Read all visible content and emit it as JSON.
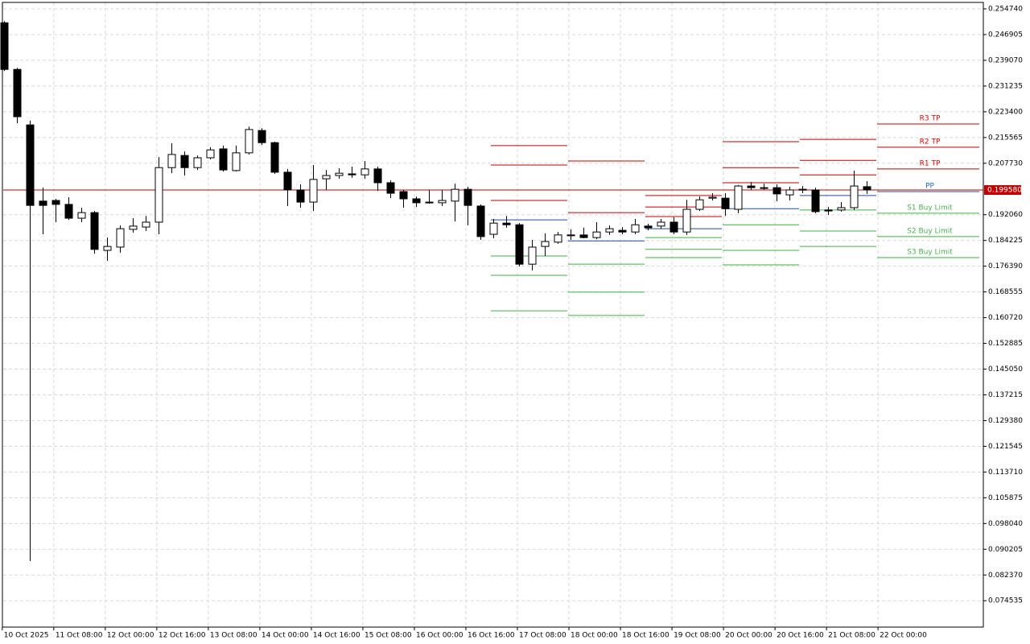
{
  "chart_data": {
    "type": "candlestick",
    "ylim": [
      0.0665,
      0.2567
    ],
    "yticks": [
      {
        "value": 0.25474,
        "label": "0.254740"
      },
      0.246905,
      {
        "value": 0.23907,
        "label": "0.239070"
      },
      0.231235,
      {
        "value": 0.2234,
        "label": "0.223400"
      },
      0.215565,
      {
        "value": 0.20773,
        "label": "0.207730"
      },
      {
        "value": 0.19206,
        "label": "0.192060"
      },
      0.184225,
      {
        "value": 0.17639,
        "label": "0.176390"
      },
      0.168555,
      {
        "value": 0.16072,
        "label": "0.160720"
      },
      0.152885,
      {
        "value": 0.14505,
        "label": "0.145050"
      },
      0.137215,
      {
        "value": 0.12938,
        "label": "0.129380"
      },
      0.121545,
      {
        "value": 0.11371,
        "label": "0.113710"
      },
      0.105875,
      {
        "value": 0.09804,
        "label": "0.098040"
      },
      0.090205,
      {
        "value": 0.08237,
        "label": "0.082370"
      },
      0.074535
    ],
    "xlim": [
      -0.3,
      76.05
    ],
    "xticks": [
      {
        "value": 0,
        "label": "10 Oct 2025"
      },
      {
        "value": 4,
        "label": "11 Oct 08:00"
      },
      {
        "value": 8,
        "label": "12 Oct 00:00"
      },
      {
        "value": 12,
        "label": "12 Oct 16:00"
      },
      {
        "value": 16,
        "label": "13 Oct 08:00"
      },
      {
        "value": 20,
        "label": "14 Oct 00:00"
      },
      {
        "value": 24,
        "label": "14 Oct 16:00"
      },
      {
        "value": 28,
        "label": "15 Oct 08:00"
      },
      {
        "value": 32,
        "label": "16 Oct 00:00"
      },
      {
        "value": 36,
        "label": "16 Oct 16:00"
      },
      {
        "value": 40,
        "label": "17 Oct 08:00"
      },
      {
        "value": 44,
        "label": "18 Oct 00:00"
      },
      {
        "value": 48,
        "label": "18 Oct 16:00"
      },
      {
        "value": 52,
        "label": "19 Oct 08:00"
      },
      {
        "value": 56,
        "label": "20 Oct 00:00"
      },
      {
        "value": 60,
        "label": "20 Oct 16:00"
      },
      {
        "value": 64,
        "label": "21 Oct 08:00"
      },
      {
        "value": 68,
        "label": "22 Oct 00:00"
      }
    ],
    "grid": true,
    "up_color": "#ffffff",
    "down_color": "#000000",
    "candles": [
      [
        0.2505,
        0.251,
        0.2358,
        0.2363
      ],
      [
        0.2363,
        0.2368,
        0.2199,
        0.2219
      ],
      [
        0.2194,
        0.2207,
        0.0866,
        0.1949
      ],
      [
        0.1962,
        0.2003,
        0.1861,
        0.1949
      ],
      [
        0.1964,
        0.1969,
        0.1898,
        0.1952
      ],
      [
        0.1952,
        0.1974,
        0.1905,
        0.191
      ],
      [
        0.191,
        0.1942,
        0.1898,
        0.1927
      ],
      [
        0.1927,
        0.1932,
        0.1802,
        0.1815
      ],
      [
        0.1812,
        0.1851,
        0.178,
        0.1824
      ],
      [
        0.1822,
        0.1888,
        0.1805,
        0.1878
      ],
      [
        0.1876,
        0.191,
        0.1866,
        0.1886
      ],
      [
        0.1883,
        0.1917,
        0.1871,
        0.1898
      ],
      [
        0.1898,
        0.2096,
        0.1861,
        0.2064
      ],
      [
        0.2064,
        0.2138,
        0.2047,
        0.2104
      ],
      [
        0.2101,
        0.2113,
        0.204,
        0.2064
      ],
      [
        0.2064,
        0.2101,
        0.2057,
        0.2094
      ],
      [
        0.2094,
        0.2126,
        0.2089,
        0.2118
      ],
      [
        0.2121,
        0.2131,
        0.2052,
        0.2057
      ],
      [
        0.2055,
        0.2131,
        0.2052,
        0.2109
      ],
      [
        0.2109,
        0.2189,
        0.2104,
        0.218
      ],
      [
        0.2177,
        0.2184,
        0.2133,
        0.214
      ],
      [
        0.214,
        0.2143,
        0.2045,
        0.205
      ],
      [
        0.205,
        0.206,
        0.1947,
        0.1996
      ],
      [
        0.1996,
        0.2013,
        0.1942,
        0.1959
      ],
      [
        0.1959,
        0.2072,
        0.1932,
        0.2028
      ],
      [
        0.203,
        0.2057,
        0.1996,
        0.204
      ],
      [
        0.204,
        0.2062,
        0.203,
        0.2047
      ],
      [
        0.2045,
        0.2067,
        0.2033,
        0.2042
      ],
      [
        0.2042,
        0.2084,
        0.203,
        0.206
      ],
      [
        0.206,
        0.2067,
        0.1993,
        0.2018
      ],
      [
        0.2018,
        0.2025,
        0.1971,
        0.1986
      ],
      [
        0.1991,
        0.1996,
        0.1942,
        0.1969
      ],
      [
        0.1969,
        0.1976,
        0.1944,
        0.1957
      ],
      [
        0.1959,
        0.1996,
        0.1954,
        0.1957
      ],
      [
        0.1957,
        0.1996,
        0.1947,
        0.1964
      ],
      [
        0.1962,
        0.2015,
        0.19,
        0.1998
      ],
      [
        0.1998,
        0.2006,
        0.1888,
        0.1949
      ],
      [
        0.1947,
        0.1952,
        0.1844,
        0.1854
      ],
      [
        0.1861,
        0.1908,
        0.1849,
        0.1895
      ],
      [
        0.1895,
        0.1917,
        0.1881,
        0.189
      ],
      [
        0.189,
        0.1895,
        0.1763,
        0.177
      ],
      [
        0.177,
        0.1844,
        0.1751,
        0.1822
      ],
      [
        0.1824,
        0.1864,
        0.1795,
        0.1839
      ],
      [
        0.1837,
        0.1868,
        0.1832,
        0.1859
      ],
      [
        0.1859,
        0.1876,
        0.1844,
        0.1859
      ],
      [
        0.1859,
        0.1881,
        0.1849,
        0.1851
      ],
      [
        0.1851,
        0.1898,
        0.1846,
        0.1868
      ],
      [
        0.1868,
        0.1888,
        0.1859,
        0.1878
      ],
      [
        0.1873,
        0.1883,
        0.1861,
        0.1868
      ],
      [
        0.1868,
        0.1908,
        0.1861,
        0.189
      ],
      [
        0.1886,
        0.1893,
        0.1873,
        0.1881
      ],
      [
        0.1886,
        0.1908,
        0.1878,
        0.1898
      ],
      [
        0.1898,
        0.1913,
        0.1861,
        0.1868
      ],
      [
        0.1868,
        0.1966,
        0.1859,
        0.1937
      ],
      [
        0.1937,
        0.1976,
        0.1932,
        0.1966
      ],
      [
        0.1971,
        0.1986,
        0.1964,
        0.1974
      ],
      [
        0.1971,
        0.1986,
        0.1917,
        0.1939
      ],
      [
        0.1937,
        0.2011,
        0.1925,
        0.2008
      ],
      [
        0.2008,
        0.202,
        0.1996,
        0.2003
      ],
      [
        0.2003,
        0.2015,
        0.1996,
        0.2003
      ],
      [
        0.2003,
        0.2013,
        0.1962,
        0.1984
      ],
      [
        0.1981,
        0.2006,
        0.1964,
        0.1996
      ],
      [
        0.1998,
        0.2008,
        0.1986,
        0.1996
      ],
      [
        0.1996,
        0.2003,
        0.1925,
        0.193
      ],
      [
        0.1935,
        0.1944,
        0.192,
        0.1932
      ],
      [
        0.1935,
        0.1959,
        0.193,
        0.1942
      ],
      [
        0.1942,
        0.2055,
        0.1935,
        0.2008
      ],
      [
        0.2006,
        0.2023,
        0.1984,
        0.1996
      ]
    ],
    "last_price": {
      "value": 0.19958,
      "label": "0.199580"
    },
    "last_price_color": "#c00000",
    "pivots": {
      "labels": [
        "R3 TP",
        "R2 TP",
        "R1 TP",
        "PP",
        "S1 Buy Limit",
        "S2 Buy Limit",
        "S3 Buy Limit"
      ],
      "colors": [
        "#c00000",
        "#c00000",
        "#c00000",
        "#1f4e9a",
        "#3cb043",
        "#3cb043",
        "#3cb043"
      ],
      "label_colors": [
        "#e00000",
        "#e00000",
        "#e00000",
        "#1e66c8",
        "#4caf50",
        "#4caf50",
        "#4caf50"
      ],
      "periods": [
        [
          0.2131,
          0.2072,
          0.1964,
          0.1905,
          0.1795,
          0.1736,
          0.1628
        ],
        [
          0.2084,
          0.1996,
          0.1927,
          0.1841,
          0.177,
          0.1685,
          0.1614
        ],
        [
          0.1979,
          0.1944,
          0.1915,
          0.1878,
          0.1851,
          0.1815,
          0.179
        ],
        [
          0.2143,
          0.2064,
          0.2018,
          0.1939,
          0.189,
          0.1812,
          0.1768
        ],
        [
          0.215,
          0.2086,
          0.2042,
          0.1979,
          0.1935,
          0.1871,
          0.1824
        ],
        [
          0.2197,
          0.2126,
          0.206,
          0.1991,
          0.1925,
          0.1854,
          0.179
        ]
      ]
    }
  }
}
